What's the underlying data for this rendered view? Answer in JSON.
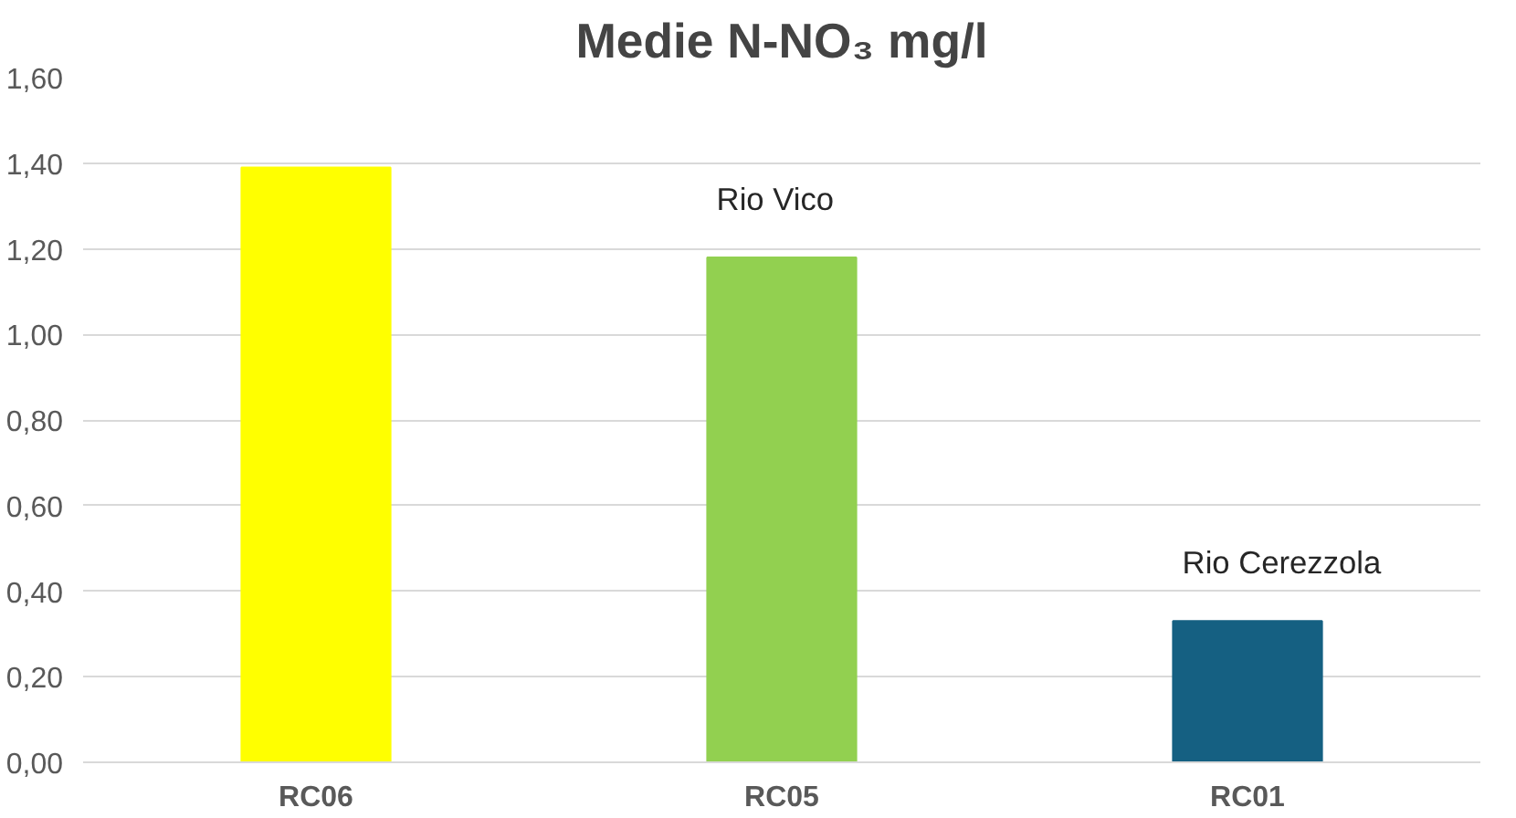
{
  "chart_data": {
    "type": "bar",
    "title": "Medie N-NO₃ mg/l",
    "categories": [
      "RC06",
      "RC05",
      "RC01"
    ],
    "values": [
      1.39,
      1.18,
      0.33
    ],
    "colors": [
      "#ffff00",
      "#92d050",
      "#156082"
    ],
    "ylim": [
      0,
      1.6
    ],
    "yticks": [
      {
        "value": 0,
        "label": "0,00"
      },
      {
        "value": 0.2,
        "label": "0,20"
      },
      {
        "value": 0.4,
        "label": "0,40"
      },
      {
        "value": 0.6,
        "label": "0,60"
      },
      {
        "value": 0.8,
        "label": "0,80"
      },
      {
        "value": 1.0,
        "label": "1,00"
      },
      {
        "value": 1.2,
        "label": "1,20"
      },
      {
        "value": 1.4,
        "label": "1,40"
      },
      {
        "value": 1.6,
        "label": "1,60"
      }
    ],
    "grid": "y",
    "annotations": [
      {
        "text": "Rio Vico",
        "x": "RC05",
        "y": 1.18
      },
      {
        "text": "Rio Cerezzola",
        "x": "RC01",
        "y": 0.33
      }
    ]
  }
}
